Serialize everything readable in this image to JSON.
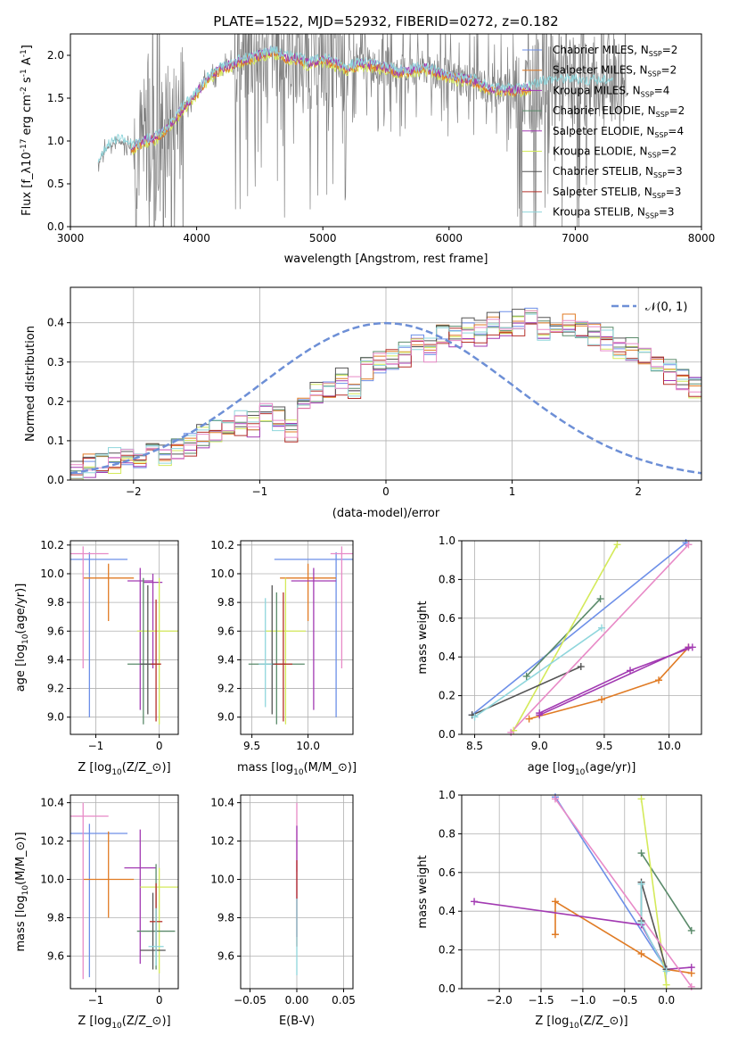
{
  "figure": {
    "title": "PLATE=1522, MJD=52932, FIBERID=0272, z=0.182"
  },
  "colors": {
    "chabrier_miles": "#6d8fe8",
    "salpeter_miles": "#e07b24",
    "kroupa_miles": "#a23ab2",
    "chabrier_elodie": "#5a8a6a",
    "salpeter_elodie": "#a23ab2",
    "kroupa_elodie": "#d4ea5a",
    "chabrier_stelib": "#555555",
    "salpeter_stelib": "#b5302a",
    "kroupa_stelib": "#8fd6dc",
    "data": "#808080",
    "extra_pink": "#e88ac7",
    "normal": "#6d8fd6"
  },
  "chart_data": [
    {
      "id": "spectrum",
      "type": "line",
      "xlabel": "wavelength [Angstrom, rest frame]",
      "ylabel": "Flux [f$_\\lambda$10$^{-17}$ erg cm$^{-2}$ s$^{-1}$ A$^{-1}$]",
      "xlim": [
        3000,
        8000
      ],
      "ylim": [
        0,
        2.25
      ],
      "xticks": [
        "3000",
        "4000",
        "5000",
        "6000",
        "7000",
        "8000"
      ],
      "yticks": [
        "0.0",
        "0.5",
        "1.0",
        "1.5",
        "2.0"
      ],
      "legend_position": "top-right",
      "data_x": [
        3220,
        3300,
        3400,
        3500,
        3600,
        3700,
        3800,
        3900,
        4000,
        4100,
        4200,
        4300,
        4400,
        4500,
        4600,
        4700,
        4800,
        4900,
        5000,
        5100,
        5200,
        5300,
        5400,
        5500,
        5600,
        5700,
        5800,
        5900,
        6000,
        6100,
        6200,
        6300,
        6400,
        6500,
        6600,
        6700,
        6800,
        6900,
        7000,
        7100,
        7200,
        7300,
        7400
      ],
      "model_y": [
        0.75,
        0.95,
        1.0,
        0.92,
        1.0,
        1.05,
        1.2,
        1.4,
        1.55,
        1.75,
        1.85,
        1.9,
        1.95,
        2.0,
        2.05,
        1.98,
        1.95,
        1.9,
        1.95,
        1.9,
        1.85,
        1.9,
        1.88,
        1.85,
        1.8,
        1.82,
        1.85,
        1.8,
        1.75,
        1.72,
        1.7,
        1.62,
        1.6,
        1.58,
        1.6,
        1.65,
        1.7,
        1.7,
        1.7,
        1.68,
        1.68,
        1.7,
        1.7
      ],
      "legend": [
        {
          "label": "Chabrier MILES, N",
          "sub": "SSP",
          "suffix": "=2",
          "color_key": "chabrier_miles"
        },
        {
          "label": "Salpeter MILES, N",
          "sub": "SSP",
          "suffix": "=2",
          "color_key": "salpeter_miles"
        },
        {
          "label": "Kroupa MILES, N",
          "sub": "SSP",
          "suffix": "=4",
          "color_key": "kroupa_miles"
        },
        {
          "label": "Chabrier ELODIE, N",
          "sub": "SSP",
          "suffix": "=2",
          "color_key": "chabrier_elodie"
        },
        {
          "label": "Salpeter ELODIE, N",
          "sub": "SSP",
          "suffix": "=4",
          "color_key": "salpeter_elodie"
        },
        {
          "label": "Kroupa ELODIE, N",
          "sub": "SSP",
          "suffix": "=2",
          "color_key": "kroupa_elodie"
        },
        {
          "label": "Chabrier STELIB, N",
          "sub": "SSP",
          "suffix": "=3",
          "color_key": "chabrier_stelib"
        },
        {
          "label": "Salpeter STELIB, N",
          "sub": "SSP",
          "suffix": "=3",
          "color_key": "salpeter_stelib"
        },
        {
          "label": "Kroupa STELIB, N",
          "sub": "SSP",
          "suffix": "=3",
          "color_key": "kroupa_stelib"
        }
      ]
    },
    {
      "id": "residuals",
      "type": "line",
      "xlabel": "(data-model)/error",
      "ylabel": "Normed distribution",
      "xlim": [
        -2.5,
        2.5
      ],
      "ylim": [
        0,
        0.49
      ],
      "xticks": [
        "−2",
        "−1",
        "0",
        "1",
        "2"
      ],
      "yticks": [
        "0.0",
        "0.1",
        "0.2",
        "0.3",
        "0.4"
      ],
      "grid": true,
      "legend_position": "top-right",
      "normal_label": "𝒩(0, 1)",
      "bin_width": 0.1,
      "hist_start": -2.5,
      "hist_values": [
        0.02,
        0.04,
        0.04,
        0.05,
        0.06,
        0.06,
        0.07,
        0.06,
        0.08,
        0.09,
        0.11,
        0.12,
        0.13,
        0.15,
        0.14,
        0.17,
        0.15,
        0.13,
        0.19,
        0.22,
        0.23,
        0.25,
        0.24,
        0.28,
        0.3,
        0.31,
        0.32,
        0.34,
        0.33,
        0.36,
        0.37,
        0.38,
        0.37,
        0.39,
        0.4,
        0.4,
        0.41,
        0.38,
        0.4,
        0.39,
        0.38,
        0.37,
        0.36,
        0.34,
        0.33,
        0.31,
        0.3,
        0.28,
        0.26,
        0.24,
        0.22,
        0.2,
        0.18,
        0.17,
        0.16,
        0.15,
        0.13,
        0.12,
        0.11,
        0.1,
        0.09,
        0.08,
        0.07,
        0.06,
        0.06,
        0.05,
        0.05,
        0.04,
        0.04,
        0.03
      ],
      "hist_offsets": [
        0,
        0.02,
        -0.02,
        0.015,
        -0.015,
        0.025,
        -0.025,
        0.01,
        -0.01
      ]
    },
    {
      "id": "age-vs-z",
      "type": "scatter",
      "xlabel": "Z [log$_{10}$($Z/Z_\\odot$)]",
      "ylabel": "age  [log$_{10}$($age/yr$)]",
      "xlim": [
        -1.4,
        0.3
      ],
      "ylim": [
        8.88,
        10.23
      ],
      "xticks": [
        "−1",
        "0"
      ],
      "xtick_values": [
        -1,
        0
      ],
      "yticks": [
        "9.0",
        "9.2",
        "9.4",
        "9.6",
        "9.8",
        "10.0",
        "10.2"
      ],
      "ytick_values": [
        9.0,
        9.2,
        9.4,
        9.6,
        9.8,
        10.0,
        10.2
      ],
      "points": [
        {
          "x": -1.1,
          "y": 10.1,
          "xerr": 0.6,
          "yerr_lo": 1.1,
          "yerr_hi": 0.05,
          "color_key": "chabrier_miles"
        },
        {
          "x": -0.8,
          "y": 9.97,
          "xerr": 0.4,
          "yerr_lo": 0.3,
          "yerr_hi": 0.1,
          "color_key": "salpeter_miles"
        },
        {
          "x": -0.3,
          "y": 9.95,
          "xerr": 0.2,
          "yerr_lo": 0.9,
          "yerr_hi": 0.09,
          "color_key": "kroupa_miles"
        },
        {
          "x": -0.1,
          "y": 9.94,
          "xerr": 0.15,
          "yerr_lo": 0.6,
          "yerr_hi": 0.06,
          "color_key": "salpeter_elodie"
        },
        {
          "x": 0.0,
          "y": 9.6,
          "xerr": 0.35,
          "yerr_lo": 0.65,
          "yerr_hi": 0.37,
          "color_key": "kroupa_elodie"
        },
        {
          "x": -0.25,
          "y": 9.37,
          "xerr": 0.25,
          "yerr_lo": 0.42,
          "yerr_hi": 0.6,
          "color_key": "chabrier_elodie"
        },
        {
          "x": -0.18,
          "y": 9.37,
          "xerr": 0.12,
          "yerr_lo": 0.35,
          "yerr_hi": 0.55,
          "color_key": "chabrier_stelib"
        },
        {
          "x": -0.05,
          "y": 9.37,
          "xerr": 0.08,
          "yerr_lo": 0.4,
          "yerr_hi": 0.45,
          "color_key": "salpeter_stelib"
        },
        {
          "x": -1.2,
          "y": 10.14,
          "xerr": 0.4,
          "yerr_lo": 0.8,
          "yerr_hi": 0.05,
          "color_key": "extra_pink"
        }
      ]
    },
    {
      "id": "age-vs-mass",
      "type": "scatter",
      "xlabel": "mass [log$_{10}$($M/M_\\odot$)]",
      "xlim": [
        9.4,
        10.4
      ],
      "ylim": [
        8.88,
        10.23
      ],
      "xticks": [
        "9.5",
        "10.0"
      ],
      "xtick_values": [
        9.5,
        10.0
      ],
      "yticks": [
        "9.0",
        "9.2",
        "9.4",
        "9.6",
        "9.8",
        "10.0",
        "10.2"
      ],
      "ytick_values": [
        9.0,
        9.2,
        9.4,
        9.6,
        9.8,
        10.0,
        10.2
      ],
      "points": [
        {
          "x": 10.25,
          "y": 10.1,
          "xerr": 0.55,
          "yerr_lo": 1.1,
          "yerr_hi": 0.05,
          "color_key": "chabrier_miles"
        },
        {
          "x": 10.0,
          "y": 9.97,
          "xerr": 0.25,
          "yerr_lo": 0.3,
          "yerr_hi": 0.1,
          "color_key": "salpeter_miles"
        },
        {
          "x": 10.05,
          "y": 9.95,
          "xerr": 0.2,
          "yerr_lo": 0.9,
          "yerr_hi": 0.09,
          "color_key": "kroupa_miles"
        },
        {
          "x": 9.8,
          "y": 9.6,
          "xerr": 0.18,
          "yerr_lo": 0.65,
          "yerr_hi": 0.37,
          "color_key": "kroupa_elodie"
        },
        {
          "x": 9.72,
          "y": 9.37,
          "xerr": 0.25,
          "yerr_lo": 0.42,
          "yerr_hi": 0.5,
          "color_key": "chabrier_elodie"
        },
        {
          "x": 9.68,
          "y": 9.37,
          "xerr": 0.12,
          "yerr_lo": 0.35,
          "yerr_hi": 0.55,
          "color_key": "chabrier_stelib"
        },
        {
          "x": 9.78,
          "y": 9.37,
          "xerr": 0.08,
          "yerr_lo": 0.4,
          "yerr_hi": 0.5,
          "color_key": "salpeter_stelib"
        },
        {
          "x": 9.62,
          "y": 9.37,
          "xerr": 0.06,
          "yerr_lo": 0.3,
          "yerr_hi": 0.46,
          "color_key": "kroupa_stelib"
        },
        {
          "x": 10.3,
          "y": 10.14,
          "xerr": 0.1,
          "yerr_lo": 0.8,
          "yerr_hi": 0.05,
          "color_key": "extra_pink"
        }
      ]
    },
    {
      "id": "mass-weight-vs-age",
      "type": "line",
      "xlabel": "age  [log$_{10}$($age/yr$)]",
      "ylabel": "mass weight",
      "xlim": [
        8.4,
        10.25
      ],
      "ylim": [
        0,
        1.0
      ],
      "xticks": [
        "8.5",
        "9.0",
        "9.5",
        "10.0"
      ],
      "xtick_values": [
        8.5,
        9.0,
        9.5,
        10.0
      ],
      "yticks": [
        "0.0",
        "0.2",
        "0.4",
        "0.6",
        "0.8",
        "1.0"
      ],
      "ytick_values": [
        0,
        0.2,
        0.4,
        0.6,
        0.8,
        1.0
      ],
      "grid": true,
      "series": [
        {
          "color_key": "chabrier_miles",
          "x": [
            8.48,
            10.13
          ],
          "y": [
            0.1,
            0.99
          ]
        },
        {
          "color_key": "salpeter_miles",
          "x": [
            8.92,
            9.48,
            9.92,
            10.15
          ],
          "y": [
            0.08,
            0.18,
            0.28,
            0.45
          ]
        },
        {
          "color_key": "kroupa_miles",
          "x": [
            9.0,
            9.7,
            10.18
          ],
          "y": [
            0.11,
            0.33,
            0.45
          ]
        },
        {
          "color_key": "chabrier_elodie",
          "x": [
            8.9,
            9.47
          ],
          "y": [
            0.3,
            0.7
          ]
        },
        {
          "color_key": "salpeter_elodie",
          "x": [
            9.0,
            10.15
          ],
          "y": [
            0.1,
            0.45
          ]
        },
        {
          "color_key": "kroupa_elodie",
          "x": [
            8.8,
            9.6
          ],
          "y": [
            0.02,
            0.98
          ]
        },
        {
          "color_key": "chabrier_stelib",
          "x": [
            8.48,
            9.32
          ],
          "y": [
            0.1,
            0.35
          ]
        },
        {
          "color_key": "kroupa_stelib",
          "x": [
            8.5,
            9.48
          ],
          "y": [
            0.09,
            0.55
          ]
        },
        {
          "color_key": "extra_pink",
          "x": [
            8.78,
            10.15
          ],
          "y": [
            0.01,
            0.98
          ]
        }
      ]
    },
    {
      "id": "mass-vs-z",
      "type": "scatter",
      "xlabel": "Z [log$_{10}$($Z/Z_\\odot$)]",
      "ylabel": "mass [log$_{10}$($M/M_\\odot$)]",
      "xlim": [
        -1.4,
        0.3
      ],
      "ylim": [
        9.43,
        10.44
      ],
      "xticks": [
        "−1",
        "0"
      ],
      "xtick_values": [
        -1,
        0
      ],
      "yticks": [
        "9.6",
        "9.8",
        "10.0",
        "10.2",
        "10.4"
      ],
      "ytick_values": [
        9.6,
        9.8,
        10.0,
        10.2,
        10.4
      ],
      "points": [
        {
          "x": -1.1,
          "y": 10.24,
          "xerr": 0.6,
          "yerr_lo": 0.75,
          "yerr_hi": 0.05,
          "color_key": "chabrier_miles"
        },
        {
          "x": -0.8,
          "y": 10.0,
          "xerr": 0.4,
          "yerr_lo": 0.2,
          "yerr_hi": 0.25,
          "color_key": "salpeter_miles"
        },
        {
          "x": -0.3,
          "y": 10.06,
          "xerr": 0.25,
          "yerr_lo": 0.5,
          "yerr_hi": 0.2,
          "color_key": "kroupa_miles"
        },
        {
          "x": 0.0,
          "y": 9.96,
          "xerr": 0.3,
          "yerr_lo": 0.45,
          "yerr_hi": 0.1,
          "color_key": "kroupa_elodie"
        },
        {
          "x": -0.05,
          "y": 9.73,
          "xerr": 0.3,
          "yerr_lo": 0.2,
          "yerr_hi": 0.35,
          "color_key": "chabrier_elodie"
        },
        {
          "x": -0.1,
          "y": 9.63,
          "xerr": 0.2,
          "yerr_lo": 0.1,
          "yerr_hi": 0.3,
          "color_key": "chabrier_stelib"
        },
        {
          "x": -0.05,
          "y": 9.78,
          "xerr": 0.1,
          "yerr_lo": 0.15,
          "yerr_hi": 0.2,
          "color_key": "salpeter_stelib"
        },
        {
          "x": -0.05,
          "y": 9.65,
          "xerr": 0.12,
          "yerr_lo": 0.1,
          "yerr_hi": 0.2,
          "color_key": "kroupa_stelib"
        },
        {
          "x": -1.2,
          "y": 10.33,
          "xerr": 0.4,
          "yerr_lo": 0.85,
          "yerr_hi": 0.07,
          "color_key": "extra_pink"
        }
      ]
    },
    {
      "id": "mass-vs-ebv",
      "type": "scatter",
      "xlabel": "E(B-V)",
      "xlim": [
        -0.06,
        0.06
      ],
      "ylim": [
        9.43,
        10.44
      ],
      "xticks": [
        "−0.05",
        "0.00",
        "0.05"
      ],
      "xtick_values": [
        -0.05,
        0,
        0.05
      ],
      "yticks": [
        "9.6",
        "9.8",
        "10.0",
        "10.2",
        "10.4"
      ],
      "ytick_values": [
        9.6,
        9.8,
        10.0,
        10.2,
        10.4
      ],
      "points": [
        {
          "x": 0.0,
          "y": 10.24,
          "xerr": 0,
          "yerr_lo": 0.2,
          "yerr_hi": 0.16,
          "color_key": "extra_pink"
        },
        {
          "x": 0.0,
          "y": 10.0,
          "xerr": 0,
          "yerr_lo": 0.3,
          "yerr_hi": 0.28,
          "color_key": "kroupa_miles"
        },
        {
          "x": 0.0,
          "y": 9.85,
          "xerr": 0,
          "yerr_lo": 0.2,
          "yerr_hi": 0.25,
          "color_key": "salpeter_stelib"
        },
        {
          "x": 0.0,
          "y": 9.7,
          "xerr": 0,
          "yerr_lo": 0.2,
          "yerr_hi": 0.2,
          "color_key": "kroupa_stelib"
        }
      ]
    },
    {
      "id": "mass-weight-vs-z",
      "type": "line",
      "xlabel": "Z [log$_{10}$($Z/Z_\\odot$)]",
      "ylabel": "mass weight",
      "xlim": [
        -2.45,
        0.42
      ],
      "ylim": [
        0,
        1.0
      ],
      "xticks": [
        "−2.0",
        "−1.5",
        "−1.0",
        "−0.5",
        "0.0"
      ],
      "xtick_values": [
        -2.0,
        -1.5,
        -1.0,
        -0.5,
        0.0
      ],
      "yticks": [
        "0.0",
        "0.2",
        "0.4",
        "0.6",
        "0.8",
        "1.0"
      ],
      "ytick_values": [
        0,
        0.2,
        0.4,
        0.6,
        0.8,
        1.0
      ],
      "grid": true,
      "series": [
        {
          "color_key": "chabrier_miles",
          "x": [
            -1.33,
            0.0
          ],
          "y": [
            0.99,
            0.1
          ]
        },
        {
          "color_key": "salpeter_miles",
          "x": [
            -1.33,
            -1.33,
            -0.3,
            0.0,
            0.3
          ],
          "y": [
            0.28,
            0.45,
            0.18,
            0.1,
            0.08
          ]
        },
        {
          "color_key": "kroupa_miles",
          "x": [
            -2.3,
            -0.3,
            0.0,
            0.3
          ],
          "y": [
            0.45,
            0.33,
            0.1,
            0.11
          ]
        },
        {
          "color_key": "chabrier_elodie",
          "x": [
            -0.3,
            0.3
          ],
          "y": [
            0.7,
            0.3
          ]
        },
        {
          "color_key": "kroupa_elodie",
          "x": [
            -0.3,
            0.0
          ],
          "y": [
            0.98,
            0.02
          ]
        },
        {
          "color_key": "chabrier_stelib",
          "x": [
            -0.3,
            -0.3,
            0.0
          ],
          "y": [
            0.35,
            0.55,
            0.1
          ]
        },
        {
          "color_key": "kroupa_stelib",
          "x": [
            -0.3,
            -0.3,
            0.0
          ],
          "y": [
            0.54,
            0.34,
            0.09
          ]
        },
        {
          "color_key": "extra_pink",
          "x": [
            -1.33,
            0.3
          ],
          "y": [
            0.98,
            0.01
          ]
        }
      ]
    }
  ]
}
